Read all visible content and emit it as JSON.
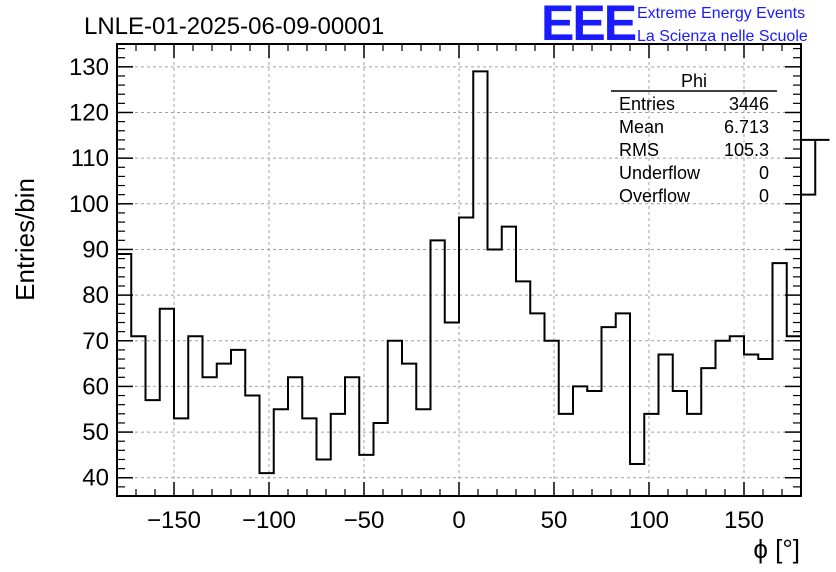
{
  "chart_data": {
    "type": "histogram",
    "title": "LNLE-01-2025-06-09-00001",
    "xlabel": "ϕ [°]",
    "ylabel": "Entries/bin",
    "xlim": [
      -180,
      180
    ],
    "ylim": [
      36,
      135
    ],
    "bin_width": 7.5,
    "x_ticks": [
      -150,
      -100,
      -50,
      0,
      50,
      100,
      150
    ],
    "y_ticks": [
      40,
      50,
      60,
      70,
      80,
      90,
      100,
      110,
      120,
      130
    ],
    "grid": true,
    "values": [
      89,
      71,
      57,
      77,
      53,
      71,
      62,
      65,
      68,
      58,
      41,
      55,
      62,
      53,
      44,
      54,
      62,
      45,
      52,
      70,
      65,
      55,
      92,
      74,
      97,
      129,
      90,
      95,
      83,
      76,
      70,
      54,
      60,
      59,
      73,
      76,
      43,
      54,
      67,
      59,
      54,
      64,
      70,
      71,
      67,
      66,
      87,
      71,
      102,
      114
    ],
    "stats": {
      "name": "Phi",
      "rows": [
        {
          "label": "Entries",
          "value": "3446"
        },
        {
          "label": "Mean",
          "value": "6.713"
        },
        {
          "label": "RMS",
          "value": "105.3"
        },
        {
          "label": "Underflow",
          "value": "0"
        },
        {
          "label": "Overflow",
          "value": "0"
        }
      ]
    }
  },
  "logo": {
    "text": "EEE",
    "line1": "Extreme Energy Events",
    "line2": "La Scienza nelle Scuole",
    "color": "#1a1aff"
  }
}
